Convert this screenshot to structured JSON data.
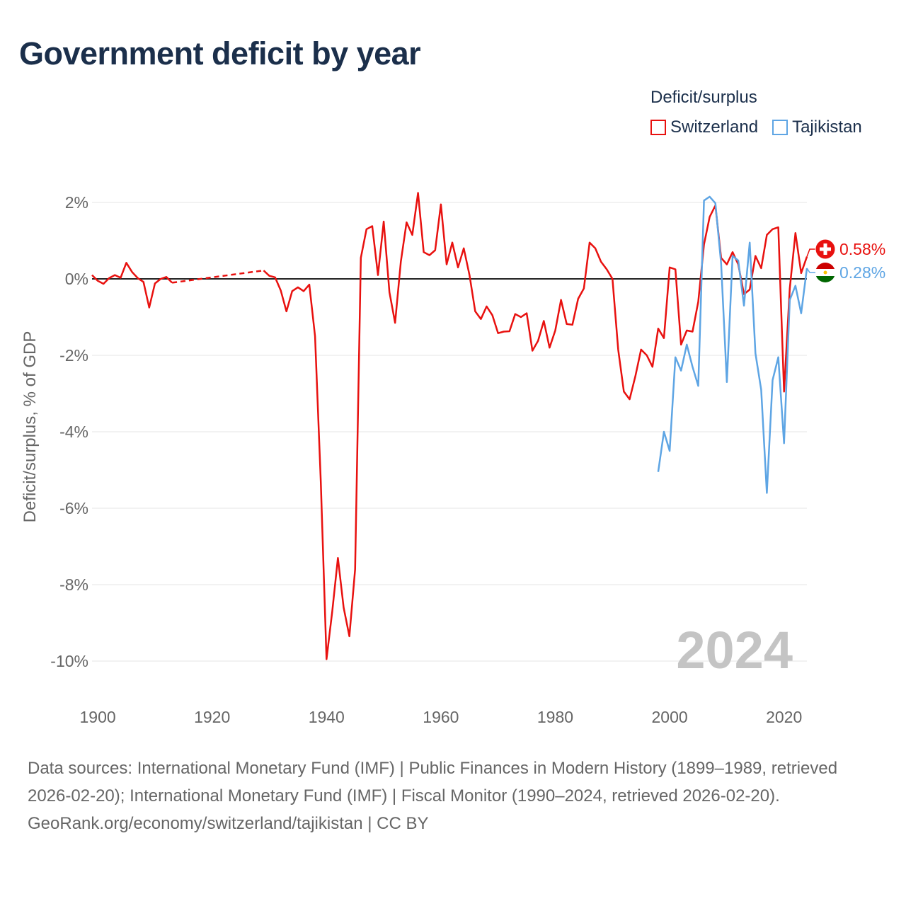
{
  "title": "Government deficit by year",
  "legend": {
    "title": "Deficit/surplus",
    "items": [
      {
        "label": "Switzerland",
        "color": "#e8110f"
      },
      {
        "label": "Tajikistan",
        "color": "#5ea5e4"
      }
    ]
  },
  "year_watermark": "2024",
  "footer": {
    "sources": "Data sources: International Monetary Fund (IMF) | Public Finances in Modern History (1899–1989, retrieved 2026-02-20); International Monetary Fund (IMF) | Fiscal Monitor (1990–2024, retrieved 2026-02-20).",
    "credit": "GeoRank.org/economy/switzerland/tajikistan | CC BY"
  },
  "chart_data": {
    "type": "line",
    "title": "Government deficit by year",
    "ylabel": "Deficit/surplus, % of GDP",
    "xlabel": "",
    "xlim": [
      1899,
      2024
    ],
    "ylim": [
      -10,
      2
    ],
    "x_ticks": [
      1900,
      1920,
      1940,
      1960,
      1980,
      2000,
      2020
    ],
    "x_tick_labels": [
      "1900",
      "1920",
      "1940",
      "1960",
      "1980",
      "2000",
      "2020"
    ],
    "y_ticks": [
      2,
      0,
      -2,
      -4,
      -6,
      -8,
      -10
    ],
    "y_tick_labels": [
      "2%",
      "0%",
      "-2%",
      "-4%",
      "-6%",
      "-8%",
      "-10%"
    ],
    "gap": {
      "series": "Switzerland",
      "from": 1913,
      "to": 1929,
      "style": "dashed"
    },
    "series": [
      {
        "name": "Switzerland",
        "color": "#e8110f",
        "end_label": "0.58%",
        "points": [
          [
            1899,
            0.1
          ],
          [
            1900,
            -0.05
          ],
          [
            1901,
            -0.13
          ],
          [
            1902,
            0.02
          ],
          [
            1903,
            0.1
          ],
          [
            1904,
            0.03
          ],
          [
            1905,
            0.42
          ],
          [
            1906,
            0.18
          ],
          [
            1907,
            0.02
          ],
          [
            1908,
            -0.08
          ],
          [
            1909,
            -0.75
          ],
          [
            1910,
            -0.12
          ],
          [
            1911,
            0.0
          ],
          [
            1912,
            0.05
          ],
          [
            1913,
            -0.1
          ],
          [
            1929,
            0.22
          ],
          [
            1930,
            0.08
          ],
          [
            1931,
            0.04
          ],
          [
            1932,
            -0.3
          ],
          [
            1933,
            -0.85
          ],
          [
            1934,
            -0.32
          ],
          [
            1935,
            -0.22
          ],
          [
            1936,
            -0.32
          ],
          [
            1937,
            -0.15
          ],
          [
            1938,
            -1.5
          ],
          [
            1939,
            -5.3
          ],
          [
            1940,
            -9.95
          ],
          [
            1941,
            -8.7
          ],
          [
            1942,
            -7.3
          ],
          [
            1943,
            -8.6
          ],
          [
            1944,
            -9.35
          ],
          [
            1945,
            -7.6
          ],
          [
            1946,
            0.55
          ],
          [
            1947,
            1.3
          ],
          [
            1948,
            1.38
          ],
          [
            1949,
            0.1
          ],
          [
            1950,
            1.5
          ],
          [
            1951,
            -0.35
          ],
          [
            1952,
            -1.15
          ],
          [
            1953,
            0.45
          ],
          [
            1954,
            1.48
          ],
          [
            1955,
            1.15
          ],
          [
            1956,
            2.25
          ],
          [
            1957,
            0.7
          ],
          [
            1958,
            0.62
          ],
          [
            1959,
            0.75
          ],
          [
            1960,
            1.95
          ],
          [
            1961,
            0.38
          ],
          [
            1962,
            0.95
          ],
          [
            1963,
            0.3
          ],
          [
            1964,
            0.8
          ],
          [
            1965,
            0.1
          ],
          [
            1966,
            -0.85
          ],
          [
            1967,
            -1.05
          ],
          [
            1968,
            -0.72
          ],
          [
            1969,
            -0.95
          ],
          [
            1970,
            -1.42
          ],
          [
            1971,
            -1.38
          ],
          [
            1972,
            -1.37
          ],
          [
            1973,
            -0.92
          ],
          [
            1974,
            -1.0
          ],
          [
            1975,
            -0.9
          ],
          [
            1976,
            -1.88
          ],
          [
            1977,
            -1.62
          ],
          [
            1978,
            -1.1
          ],
          [
            1979,
            -1.8
          ],
          [
            1980,
            -1.35
          ],
          [
            1981,
            -0.55
          ],
          [
            1982,
            -1.18
          ],
          [
            1983,
            -1.2
          ],
          [
            1984,
            -0.52
          ],
          [
            1985,
            -0.25
          ],
          [
            1986,
            0.95
          ],
          [
            1987,
            0.8
          ],
          [
            1988,
            0.45
          ],
          [
            1989,
            0.25
          ],
          [
            1990,
            0.0
          ],
          [
            1991,
            -1.85
          ],
          [
            1992,
            -2.95
          ],
          [
            1993,
            -3.15
          ],
          [
            1994,
            -2.55
          ],
          [
            1995,
            -1.85
          ],
          [
            1996,
            -2.0
          ],
          [
            1997,
            -2.3
          ],
          [
            1998,
            -1.3
          ],
          [
            1999,
            -1.55
          ],
          [
            2000,
            0.3
          ],
          [
            2001,
            0.25
          ],
          [
            2002,
            -1.72
          ],
          [
            2003,
            -1.35
          ],
          [
            2004,
            -1.38
          ],
          [
            2005,
            -0.6
          ],
          [
            2006,
            0.9
          ],
          [
            2007,
            1.62
          ],
          [
            2008,
            1.92
          ],
          [
            2009,
            0.55
          ],
          [
            2010,
            0.38
          ],
          [
            2011,
            0.7
          ],
          [
            2012,
            0.38
          ],
          [
            2013,
            -0.4
          ],
          [
            2014,
            -0.28
          ],
          [
            2015,
            0.6
          ],
          [
            2016,
            0.28
          ],
          [
            2017,
            1.15
          ],
          [
            2018,
            1.3
          ],
          [
            2019,
            1.35
          ],
          [
            2020,
            -2.95
          ],
          [
            2021,
            -0.25
          ],
          [
            2022,
            1.2
          ],
          [
            2023,
            0.15
          ],
          [
            2024,
            0.58
          ]
        ]
      },
      {
        "name": "Tajikistan",
        "color": "#5ea5e4",
        "end_label": "0.28%",
        "points": [
          [
            1998,
            -5.05
          ],
          [
            1999,
            -4.0
          ],
          [
            2000,
            -4.5
          ],
          [
            2001,
            -2.05
          ],
          [
            2002,
            -2.4
          ],
          [
            2003,
            -1.72
          ],
          [
            2004,
            -2.3
          ],
          [
            2005,
            -2.8
          ],
          [
            2006,
            2.05
          ],
          [
            2007,
            2.15
          ],
          [
            2008,
            1.98
          ],
          [
            2009,
            0.4
          ],
          [
            2010,
            -2.7
          ],
          [
            2011,
            0.6
          ],
          [
            2012,
            0.48
          ],
          [
            2013,
            -0.7
          ],
          [
            2014,
            0.95
          ],
          [
            2015,
            -1.95
          ],
          [
            2016,
            -2.9
          ],
          [
            2017,
            -5.6
          ],
          [
            2018,
            -2.65
          ],
          [
            2019,
            -2.05
          ],
          [
            2020,
            -4.3
          ],
          [
            2021,
            -0.55
          ],
          [
            2022,
            -0.18
          ],
          [
            2023,
            -0.9
          ],
          [
            2024,
            0.28
          ]
        ]
      }
    ]
  }
}
